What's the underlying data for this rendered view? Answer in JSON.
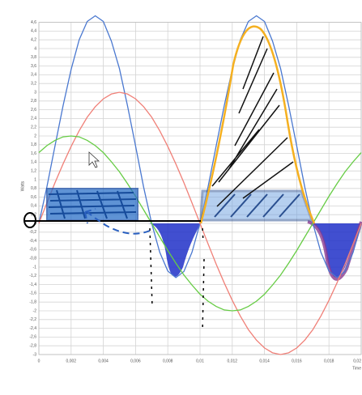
{
  "chart_data": {
    "type": "line",
    "ylabel": "Watts",
    "xlabel": "Time",
    "x": [
      0,
      0.0005,
      0.001,
      0.0015,
      0.002,
      0.0025,
      0.003,
      0.0035,
      0.004,
      0.0045,
      0.005,
      0.0055,
      0.006,
      0.0065,
      0.007,
      0.0075,
      0.008,
      0.0085,
      0.009,
      0.0095,
      0.01,
      0.0105,
      0.011,
      0.0115,
      0.012,
      0.0125,
      0.013,
      0.0135,
      0.014,
      0.0145,
      0.015,
      0.0155,
      0.016,
      0.0165,
      0.017,
      0.0175,
      0.018,
      0.0185,
      0.019,
      0.0195,
      0.02
    ],
    "series": [
      {
        "color": "#4a78d0",
        "values": [
          0,
          0.84,
          1.77,
          2.69,
          3.52,
          4.2,
          4.62,
          4.75,
          4.62,
          4.17,
          3.54,
          2.69,
          1.77,
          0.83,
          0,
          -0.66,
          -1.09,
          -1.24,
          -1.1,
          -0.66,
          0,
          0.84,
          1.77,
          2.69,
          3.52,
          4.2,
          4.62,
          4.75,
          4.62,
          4.17,
          3.54,
          2.69,
          1.77,
          0.83,
          0,
          -0.66,
          -1.09,
          -1.24,
          -1.1,
          -0.66,
          0
        ]
      },
      {
        "color": "#f08078",
        "values": [
          0,
          0.47,
          0.93,
          1.36,
          1.76,
          2.12,
          2.43,
          2.67,
          2.85,
          2.96,
          3,
          2.96,
          2.85,
          2.67,
          2.43,
          2.12,
          1.76,
          1.36,
          0.93,
          0.47,
          0,
          -0.47,
          -0.93,
          -1.36,
          -1.76,
          -2.12,
          -2.43,
          -2.67,
          -2.85,
          -2.96,
          -3,
          -2.96,
          -2.85,
          -2.67,
          -2.43,
          -2.12,
          -1.76,
          -1.36,
          -0.93,
          -0.47,
          0
        ]
      },
      {
        "color": "#66cc44",
        "values": [
          1.62,
          1.78,
          1.9,
          1.98,
          2,
          1.98,
          1.9,
          1.78,
          1.62,
          1.41,
          1.18,
          0.91,
          0.62,
          0.31,
          0,
          -0.31,
          -0.62,
          -0.91,
          -1.18,
          -1.41,
          -1.62,
          -1.78,
          -1.9,
          -1.98,
          -2,
          -1.98,
          -1.9,
          -1.78,
          -1.62,
          -1.41,
          -1.18,
          -0.91,
          -0.62,
          -0.31,
          0,
          0.31,
          0.62,
          0.91,
          1.18,
          1.41,
          1.62
        ]
      }
    ],
    "xlim": [
      0,
      0.02
    ],
    "xticks": [
      0,
      {
        "value": 0.002,
        "label": "0,002"
      },
      {
        "value": 0.004,
        "label": "0,004"
      },
      {
        "value": 0.006,
        "label": "0,006"
      },
      {
        "value": 0.008,
        "label": "0,008"
      },
      {
        "value": 0.01,
        "label": "0,01"
      },
      {
        "value": 0.012,
        "label": "0,012"
      },
      {
        "value": 0.014,
        "label": "0,014"
      },
      {
        "value": 0.016,
        "label": "0,016"
      },
      {
        "value": 0.018,
        "label": "0,018"
      },
      {
        "value": 0.02,
        "label": "0,02"
      }
    ],
    "ylim": [
      -3,
      4.6
    ],
    "yticks": [
      {
        "value": -3,
        "label": "-3"
      },
      {
        "value": -2.8,
        "label": "-2,8"
      },
      {
        "value": -2.6,
        "label": "-2,6"
      },
      {
        "value": -2.4,
        "label": "-2,4"
      },
      {
        "value": -2.2,
        "label": "-2,2"
      },
      {
        "value": -2,
        "label": "-2"
      },
      {
        "value": -1.8,
        "label": "-1,8"
      },
      {
        "value": -1.6,
        "label": "-1,6"
      },
      {
        "value": -1.4,
        "label": "-1,4"
      },
      {
        "value": -1.2,
        "label": "-1,2"
      },
      {
        "value": -1,
        "label": "-1"
      },
      {
        "value": -0.8,
        "label": "-0,8"
      },
      {
        "value": -0.6,
        "label": "-0,6"
      },
      {
        "value": -0.4,
        "label": "-0,4"
      },
      {
        "value": -0.2,
        "label": "-0,2"
      },
      0,
      {
        "value": 0.2,
        "label": "0,2"
      },
      {
        "value": 0.4,
        "label": "0,4"
      },
      {
        "value": 0.6,
        "label": "0,6"
      },
      {
        "value": 0.8,
        "label": "0,8"
      },
      1,
      {
        "value": 1.2,
        "label": "1,2"
      },
      {
        "value": 1.4,
        "label": "1,4"
      },
      {
        "value": 1.6,
        "label": "1,6"
      },
      {
        "value": 1.8,
        "label": "1,8"
      },
      2,
      {
        "value": 2.2,
        "label": "2,2"
      },
      {
        "value": 2.4,
        "label": "2,4"
      },
      {
        "value": 2.6,
        "label": "2,6"
      },
      {
        "value": 2.8,
        "label": "2,8"
      },
      3,
      {
        "value": 3.2,
        "label": "3,2"
      },
      {
        "value": 3.4,
        "label": "3,4"
      },
      {
        "value": 3.6,
        "label": "3,6"
      },
      {
        "value": 3.8,
        "label": "3,8"
      },
      4,
      {
        "value": 4.2,
        "label": "4,2"
      },
      {
        "value": 4.4,
        "label": "4,4"
      },
      {
        "value": 4.6,
        "label": "4,6"
      }
    ],
    "grid": true
  }
}
